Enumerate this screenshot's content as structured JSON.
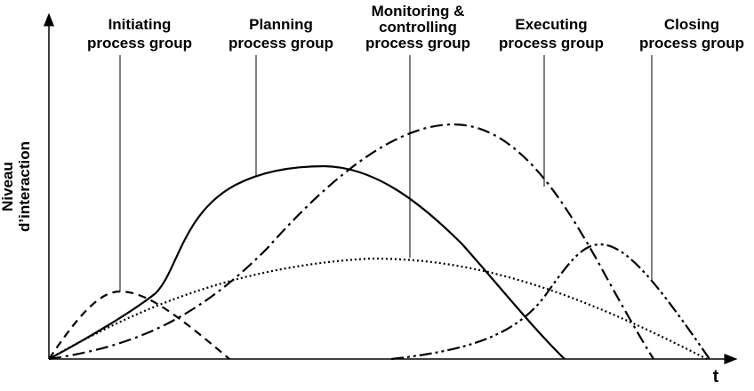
{
  "labels": [
    {
      "lines": [
        "Initiating",
        "process group"
      ]
    },
    {
      "lines": [
        "Planning",
        "process group"
      ]
    },
    {
      "lines": [
        "Monitoring &",
        "controlling",
        "process group"
      ]
    },
    {
      "lines": [
        "Executing",
        "process group"
      ]
    },
    {
      "lines": [
        "Closing",
        "process group"
      ]
    }
  ],
  "axes": {
    "y_label": [
      "Niveau",
      "d’interaction"
    ],
    "x_label": "t"
  }
}
